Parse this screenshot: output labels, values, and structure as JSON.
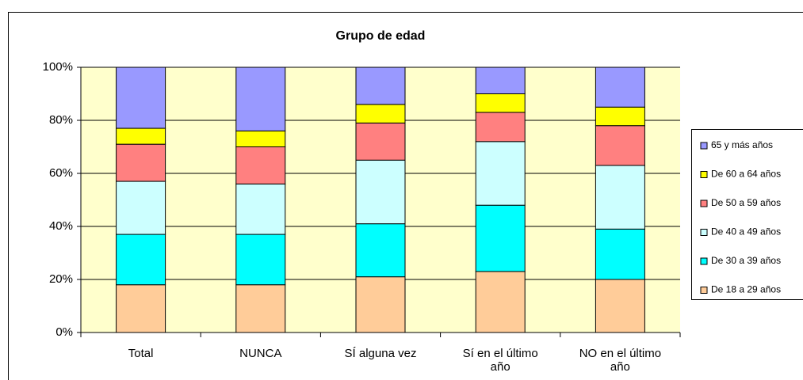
{
  "chart_data": {
    "type": "stacked_bar",
    "title": "Grupo de edad",
    "categories": [
      "Total",
      "NUNCA",
      "SÍ alguna vez",
      "Sí en el último año",
      "NO en el último año"
    ],
    "series": [
      {
        "name": "De 18 a 29 años",
        "color": "#FFCC99",
        "values": [
          18,
          18,
          21,
          23,
          20
        ]
      },
      {
        "name": "De 30 a 39 años",
        "color": "#00FFFF",
        "values": [
          19,
          19,
          20,
          25,
          19
        ]
      },
      {
        "name": "De 40 a 49 años",
        "color": "#CCFFFF",
        "values": [
          20,
          19,
          24,
          24,
          24
        ]
      },
      {
        "name": "De 50 a 59 años",
        "color": "#FF8080",
        "values": [
          14,
          14,
          14,
          11,
          15
        ]
      },
      {
        "name": "De 60 a 64 años",
        "color": "#FFFF00",
        "values": [
          6,
          6,
          7,
          7,
          7
        ]
      },
      {
        "name": "65 y más años",
        "color": "#9999FF",
        "values": [
          23,
          24,
          14,
          10,
          15
        ]
      }
    ],
    "ylim": [
      0,
      100
    ],
    "yticks": [
      {
        "value": 0,
        "label": "0%"
      },
      {
        "value": 20,
        "label": "20%"
      },
      {
        "value": 40,
        "label": "40%"
      },
      {
        "value": 60,
        "label": "60%"
      },
      {
        "value": 80,
        "label": "80%"
      },
      {
        "value": 100,
        "label": "100%"
      }
    ],
    "grid": true,
    "legend": "right"
  }
}
